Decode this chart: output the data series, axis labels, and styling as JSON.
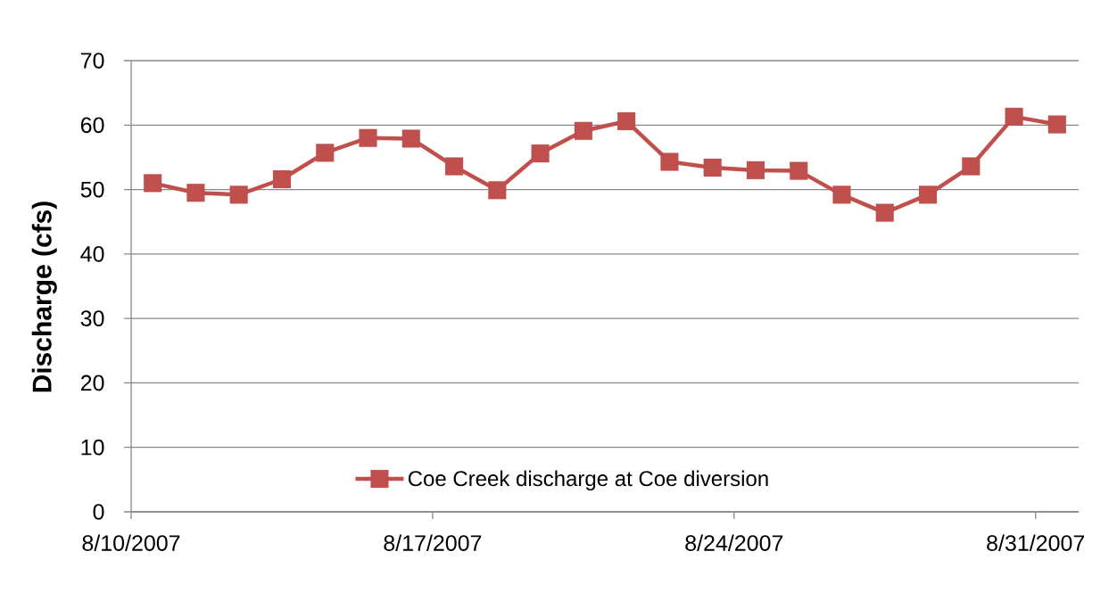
{
  "chart_data": {
    "type": "line",
    "ylabel": "Discharge (cfs)",
    "x": [
      "2007-08-10T12:00",
      "2007-08-11T12:00",
      "2007-08-12T12:00",
      "2007-08-13T12:00",
      "2007-08-14T12:00",
      "2007-08-15T12:00",
      "2007-08-16T12:00",
      "2007-08-17T12:00",
      "2007-08-18T12:00",
      "2007-08-19T12:00",
      "2007-08-20T12:00",
      "2007-08-21T12:00",
      "2007-08-22T12:00",
      "2007-08-23T12:00",
      "2007-08-24T12:00",
      "2007-08-25T12:00",
      "2007-08-26T12:00",
      "2007-08-27T12:00",
      "2007-08-28T12:00",
      "2007-08-29T12:00",
      "2007-08-30T12:00",
      "2007-08-31T12:00"
    ],
    "series": [
      {
        "name": "Coe Creek discharge at Coe diversion",
        "color": "#c0504d",
        "values": [
          51.0,
          49.5,
          49.2,
          51.6,
          55.7,
          58.0,
          57.9,
          53.6,
          49.9,
          55.6,
          59.1,
          60.6,
          54.3,
          53.4,
          53.0,
          52.9,
          49.2,
          46.4,
          49.2,
          53.6,
          61.3,
          60.1
        ]
      }
    ],
    "xlim": [
      "2007-08-10",
      "2007-09-01"
    ],
    "xticks": [
      {
        "value": "2007-08-10",
        "label": "8/10/2007"
      },
      {
        "value": "2007-08-17",
        "label": "8/17/2007"
      },
      {
        "value": "2007-08-24",
        "label": "8/24/2007"
      },
      {
        "value": "2007-08-31",
        "label": "8/31/2007"
      }
    ],
    "ylim": [
      0,
      70
    ],
    "yticks": [
      0,
      10,
      20,
      30,
      40,
      50,
      60,
      70
    ],
    "grid": "y",
    "legend": "bottom",
    "marker": "square",
    "line_style": "solid"
  }
}
